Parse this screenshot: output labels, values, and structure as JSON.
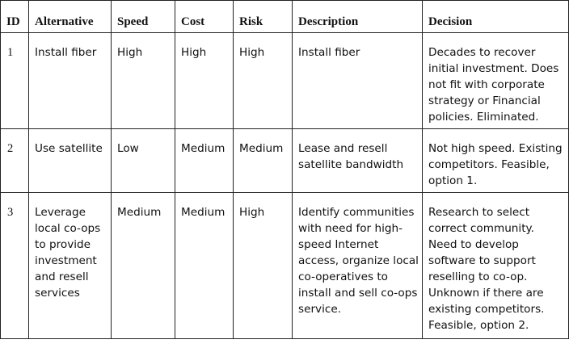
{
  "table": {
    "headers": {
      "id": "ID",
      "alternative": "Alternative",
      "speed": "Speed",
      "cost": "Cost",
      "risk": "Risk",
      "description": "Description",
      "decision": "Decision"
    },
    "rows": [
      {
        "id": "1",
        "alternative": "Install fiber",
        "speed": "High",
        "cost": "High",
        "risk": "High",
        "description": "Install fiber",
        "decision": "Decades to recover initial investment. Does not fit with corporate strategy or Financial policies. Eliminated."
      },
      {
        "id": "2",
        "alternative": "Use satellite",
        "speed": "Low",
        "cost": "Medium",
        "risk": "Medium",
        "description": "Lease and resell satellite bandwidth",
        "decision": "Not high speed. Existing competitors. Feasible, option 1."
      },
      {
        "id": "3",
        "alternative": "Leverage local co-ops to provide investment and resell services",
        "speed": "Medium",
        "cost": "Medium",
        "risk": "High",
        "description": "Identify communities with need for high-speed Internet access, organize local co-operatives to install and sell co-ops service.",
        "decision": "Research to select correct community. Need to develop software to support reselling to co-op. Unknown if there are existing competitors. Feasible, option 2."
      }
    ]
  }
}
